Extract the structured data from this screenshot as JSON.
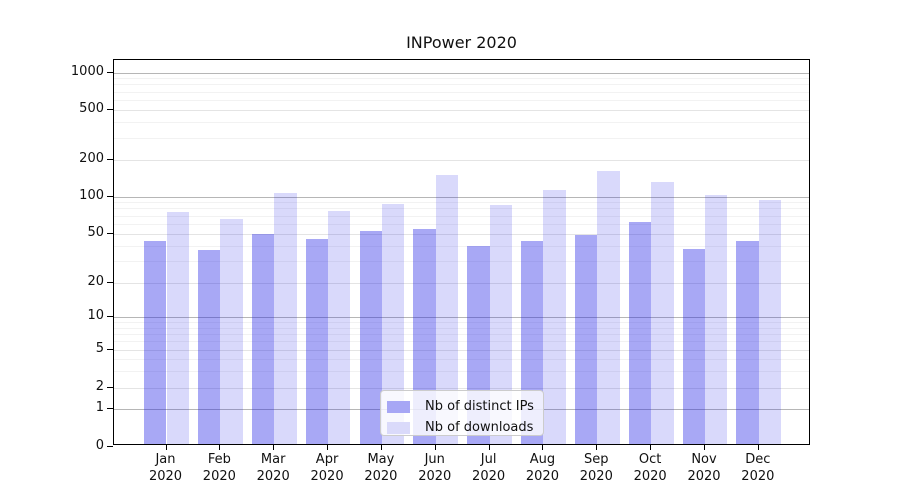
{
  "title": "INPower 2020",
  "chart_data": {
    "type": "bar",
    "title": "INPower 2020",
    "categories": [
      "Jan",
      "Feb",
      "Mar",
      "Apr",
      "May",
      "Jun",
      "Jul",
      "Aug",
      "Sep",
      "Oct",
      "Nov",
      "Dec"
    ],
    "category_year": "2020",
    "series": [
      {
        "name": "Nb of distinct IPs",
        "color": "rgba(30,30,230,0.39)",
        "swatch": "#a7a7f5",
        "values": [
          43,
          36,
          49,
          44,
          51,
          53,
          39,
          43,
          48,
          61,
          37,
          43
        ]
      },
      {
        "name": "Nb of downloads",
        "color": "rgba(30,30,230,0.17)",
        "swatch": "#dadafa",
        "values": [
          73,
          65,
          104,
          75,
          85,
          149,
          84,
          112,
          160,
          130,
          101,
          92
        ]
      }
    ],
    "xlabel": "",
    "ylabel": "",
    "y_ticks": [
      0,
      1,
      2,
      5,
      10,
      20,
      50,
      100,
      200,
      500,
      1000
    ],
    "y_minor_ticks": [
      3,
      4,
      6,
      7,
      8,
      9,
      30,
      40,
      60,
      70,
      80,
      90,
      300,
      400,
      600,
      700,
      800,
      900
    ],
    "y_scale": "log-with-zero",
    "ylim": [
      0,
      1300
    ],
    "grid": "on",
    "legend_position": "lower center"
  }
}
